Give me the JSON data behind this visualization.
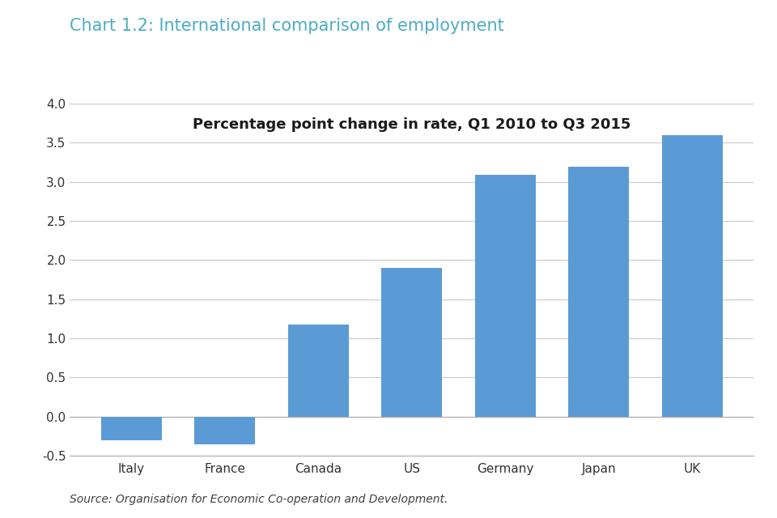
{
  "title": "Chart 1.2: International comparison of employment",
  "subtitle": "Percentage point change in rate, Q1 2010 to Q3 2015",
  "source": "Source: Organisation for Economic Co-operation and Development.",
  "categories": [
    "Italy",
    "France",
    "Canada",
    "US",
    "Germany",
    "Japan",
    "UK"
  ],
  "values": [
    -0.3,
    -0.35,
    1.18,
    1.9,
    3.09,
    3.19,
    3.6
  ],
  "bar_color": "#5b9bd5",
  "title_color": "#4bacc6",
  "subtitle_color": "#1a1a1a",
  "source_color": "#404040",
  "background_color": "#ffffff",
  "ylim": [
    -0.5,
    4.0
  ],
  "yticks": [
    -0.5,
    0.0,
    0.5,
    1.0,
    1.5,
    2.0,
    2.5,
    3.0,
    3.5,
    4.0
  ],
  "grid_color": "#c8c8c8",
  "title_fontsize": 15,
  "subtitle_fontsize": 13,
  "tick_fontsize": 11,
  "source_fontsize": 10,
  "bar_width": 0.65
}
